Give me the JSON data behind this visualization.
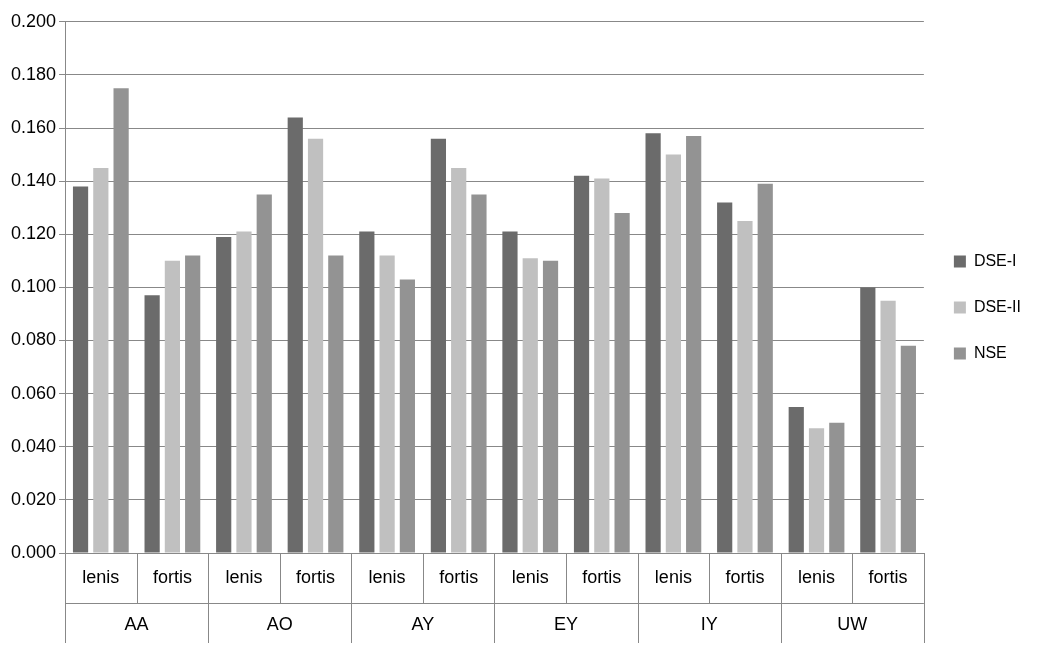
{
  "chart_data": {
    "type": "bar",
    "categories": [
      "lenis",
      "fortis",
      "lenis",
      "fortis",
      "lenis",
      "fortis",
      "lenis",
      "fortis",
      "lenis",
      "fortis",
      "lenis",
      "fortis"
    ],
    "series": [
      {
        "name": "DSE-I",
        "color": "#6b6b6b",
        "values": [
          0.138,
          0.097,
          0.119,
          0.164,
          0.121,
          0.156,
          0.121,
          0.142,
          0.158,
          0.132,
          0.055,
          0.1
        ]
      },
      {
        "name": "DSE-II",
        "color": "#c0c0c0",
        "values": [
          0.145,
          0.11,
          0.121,
          0.156,
          0.112,
          0.145,
          0.111,
          0.141,
          0.15,
          0.125,
          0.047,
          0.095
        ]
      },
      {
        "name": "NSE",
        "color": "#939393",
        "values": [
          0.175,
          0.112,
          0.135,
          0.112,
          0.103,
          0.135,
          0.11,
          0.128,
          0.157,
          0.139,
          0.049,
          0.078
        ]
      }
    ],
    "annotations": [
      "AA",
      "AO",
      "AY",
      "EY",
      "IY",
      "UW"
    ],
    "ylim": [
      0,
      0.2
    ],
    "yticks": [
      {
        "value": 0,
        "label": "0.000"
      },
      {
        "value": 0.02,
        "label": "0.020"
      },
      {
        "value": 0.04,
        "label": "0.040"
      },
      {
        "value": 0.06,
        "label": "0.060"
      },
      {
        "value": 0.08,
        "label": "0.080"
      },
      {
        "value": 0.1,
        "label": "0.100"
      },
      {
        "value": 0.12,
        "label": "0.120"
      },
      {
        "value": 0.14,
        "label": "0.140"
      },
      {
        "value": 0.16,
        "label": "0.160"
      },
      {
        "value": 0.18,
        "label": "0.180"
      },
      {
        "value": 0.2,
        "label": "0.200"
      }
    ],
    "grid": "y",
    "legend": "right"
  }
}
